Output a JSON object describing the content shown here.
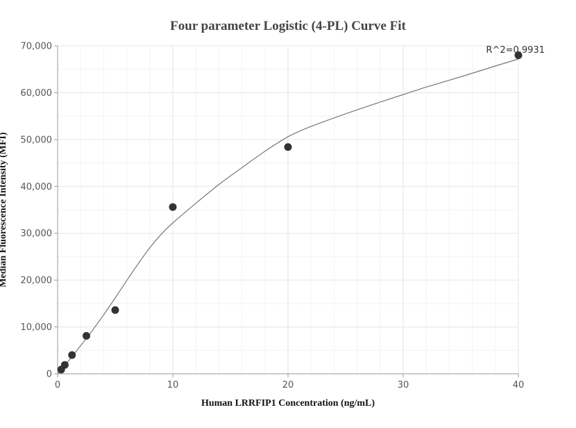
{
  "chart_data": {
    "type": "scatter",
    "title": "Four parameter Logistic (4-PL) Curve Fit",
    "xlabel": "Human LRRFIP1 Concentration (ng/mL)",
    "ylabel": "Median Fluorescence Intensity (MFI)",
    "xlim": [
      0,
      40
    ],
    "ylim": [
      0,
      70000
    ],
    "x_ticks": [
      0,
      10,
      20,
      30,
      40
    ],
    "x_tick_labels": [
      "0",
      "10",
      "20",
      "30",
      "40"
    ],
    "y_ticks": [
      0,
      10000,
      20000,
      30000,
      40000,
      50000,
      60000,
      70000
    ],
    "y_tick_labels": [
      "0",
      "10,000",
      "20,000",
      "30,000",
      "40,000",
      "50,000",
      "60,000",
      "70,000"
    ],
    "grid": true,
    "annotation": "R^2=0.9931",
    "series": [
      {
        "type": "scatter",
        "x": [
          0.3125,
          0.625,
          1.25,
          2.5,
          5,
          10,
          20,
          40
        ],
        "y": [
          900,
          1900,
          4000,
          8100,
          13600,
          35600,
          48400,
          68000
        ]
      },
      {
        "type": "line",
        "x": [
          0,
          1,
          2,
          3,
          4,
          5,
          6,
          7,
          8,
          9,
          10,
          12,
          14,
          16,
          18,
          20,
          22,
          25,
          28,
          30,
          32,
          35,
          38,
          40
        ],
        "y": [
          0,
          2900,
          6000,
          9200,
          12600,
          16200,
          19900,
          23500,
          26900,
          29800,
          32200,
          36400,
          40400,
          44000,
          47500,
          50600,
          52800,
          55500,
          58000,
          59600,
          61200,
          63400,
          65700,
          67200
        ]
      }
    ],
    "colors": {
      "marker": "#333333",
      "curve": "#777777",
      "grid_major": "#e6e6e6",
      "grid_minor": "#f3f3f3",
      "axis": "#999999"
    }
  }
}
